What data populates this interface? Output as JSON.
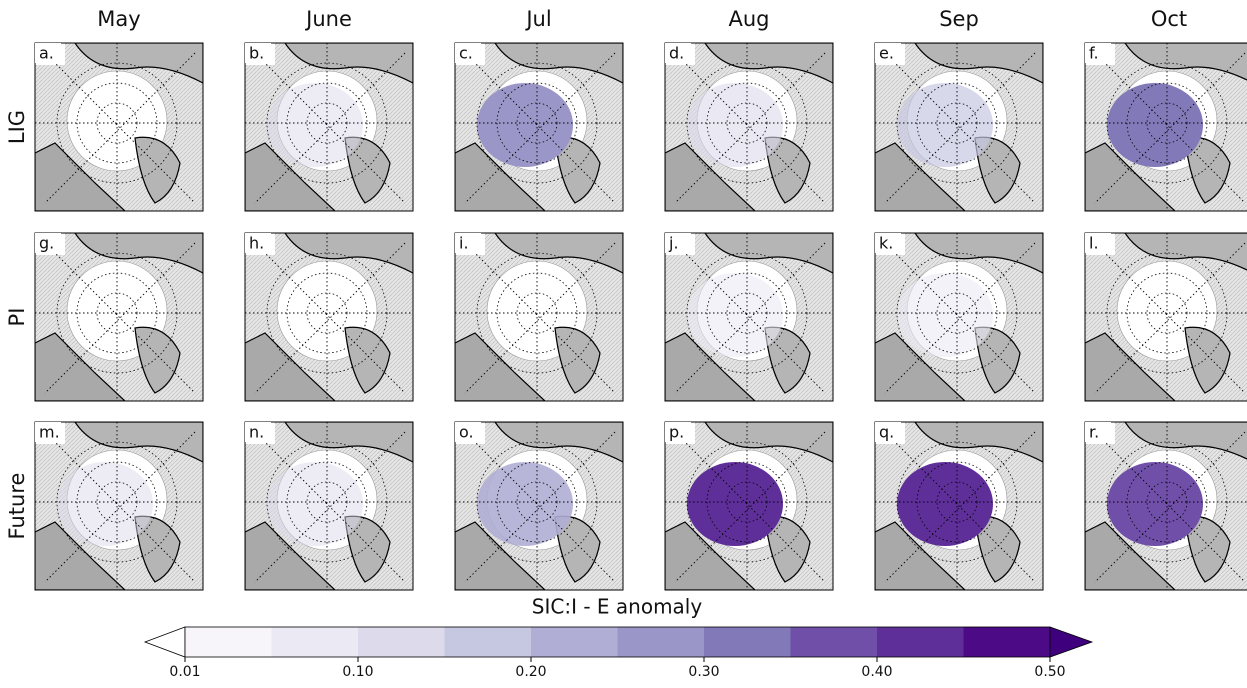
{
  "columns": [
    "May",
    "June",
    "Jul",
    "Aug",
    "Sep",
    "Oct"
  ],
  "rows": [
    "LIG",
    "PI",
    "Future"
  ],
  "panel_labels": [
    [
      "a.",
      "b.",
      "c.",
      "d.",
      "e.",
      "f."
    ],
    [
      "g.",
      "h.",
      "i.",
      "j.",
      "k.",
      "l."
    ],
    [
      "m.",
      "n.",
      "o.",
      "p.",
      "q.",
      "r."
    ]
  ],
  "colorbar": {
    "title": "SIC:I - E anomaly",
    "levels": [
      0.01,
      0.05,
      0.1,
      0.15,
      0.2,
      0.25,
      0.3,
      0.35,
      0.4,
      0.45,
      0.5
    ],
    "colors": [
      "#f7f5fa",
      "#ebe9f3",
      "#dcdaeb",
      "#c6c7e1",
      "#b0aed4",
      "#9a96c7",
      "#8279b8",
      "#6f4fa8",
      "#5f2f99",
      "#4d0a86"
    ],
    "under_color": "#ffffff",
    "over_color": "#3f007d",
    "ticks": [
      0.01,
      {
        "value": 0.1,
        "label": "0.10"
      },
      {
        "value": 0.2,
        "label": "0.20"
      },
      {
        "value": 0.3,
        "label": "0.30"
      },
      {
        "value": 0.4,
        "label": "0.40"
      },
      {
        "value": 0.5,
        "label": "0.50"
      }
    ]
  }
}
